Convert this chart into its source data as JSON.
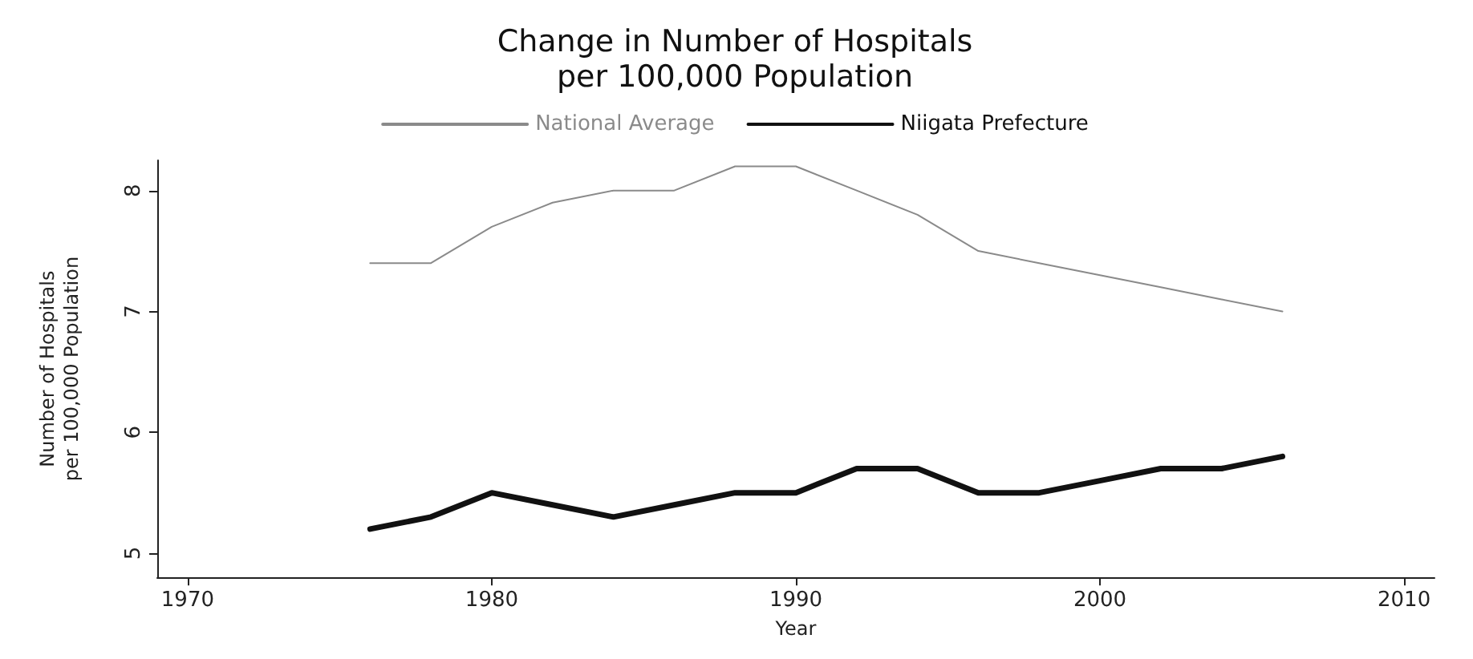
{
  "chart_data": {
    "type": "line",
    "title": "Change in Number of Hospitals\nper 100,000 Population",
    "xlabel": "Year",
    "ylabel": "Number of Hospitals\nper 100,000 Population",
    "x": [
      1976,
      1978,
      1980,
      1982,
      1984,
      1986,
      1988,
      1990,
      1992,
      1994,
      1996,
      1998,
      2000,
      2002,
      2004,
      2006
    ],
    "series": [
      {
        "name": "National Average",
        "color": "#8a8a8a",
        "values": [
          7.4,
          7.4,
          7.7,
          7.9,
          8.0,
          8.0,
          8.2,
          8.2,
          8.0,
          7.8,
          7.5,
          7.4,
          7.3,
          7.2,
          7.1,
          7.0
        ]
      },
      {
        "name": "Niigata Prefecture",
        "color": "#111111",
        "values": [
          5.2,
          5.3,
          5.5,
          5.4,
          5.3,
          5.4,
          5.5,
          5.5,
          5.7,
          5.7,
          5.5,
          5.5,
          5.6,
          5.7,
          5.7,
          5.8
        ]
      }
    ],
    "xlim": [
      1969,
      2011
    ],
    "xticks": [
      1970,
      1980,
      1990,
      2000,
      2010
    ],
    "ylim": [
      4.8,
      8.25
    ],
    "yticks": [
      5,
      6,
      7,
      8
    ],
    "grid": false,
    "legend": "top",
    "marker": "none",
    "line_style": "solid"
  }
}
